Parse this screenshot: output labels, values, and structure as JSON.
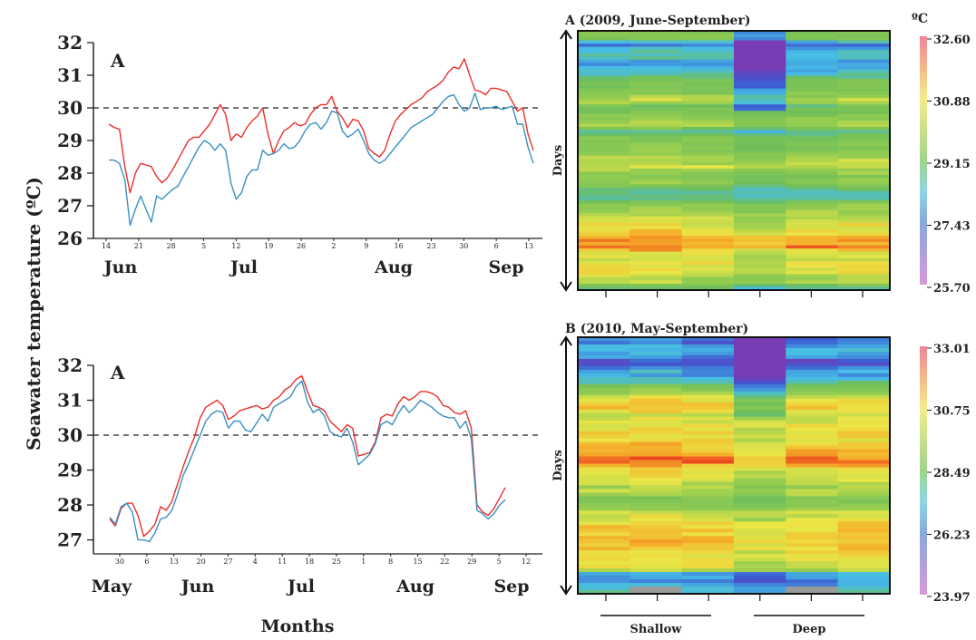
{
  "shared": {
    "y_axis_label": "Seawater temperature (ºC)",
    "x_axis_label": "Months",
    "threshold": 30,
    "colors": {
      "series_a": "#e8302a",
      "series_b": "#3a8fc2",
      "threshold_line": "#222222",
      "box_border": "#111111"
    }
  },
  "chart_data": [
    {
      "id": "line_2009",
      "type": "line",
      "panel_label": "A",
      "ylim": [
        26,
        32
      ],
      "yticks": [
        26,
        27,
        28,
        29,
        30,
        31,
        32
      ],
      "x_day_ticks": [
        "14",
        "21",
        "28",
        "5",
        "12",
        "19",
        "26",
        "2",
        "9",
        "16",
        "23",
        "30",
        "6",
        "13"
      ],
      "months": [
        "Jun",
        "Jul",
        "Aug",
        "Sep"
      ],
      "reference_line": 30,
      "series": [
        {
          "color": "#e8302a",
          "values": [
            29.5,
            29.4,
            29.35,
            28.2,
            27.4,
            28.0,
            28.3,
            28.25,
            28.2,
            27.9,
            27.7,
            27.85,
            28.1,
            28.4,
            28.7,
            29.0,
            29.1,
            29.1,
            29.3,
            29.5,
            29.8,
            30.1,
            29.8,
            29.0,
            29.2,
            29.1,
            29.4,
            29.6,
            29.75,
            30.0,
            29.2,
            28.6,
            29.0,
            29.3,
            29.4,
            29.55,
            29.45,
            29.5,
            29.8,
            30.0,
            30.1,
            30.1,
            30.35,
            29.9,
            29.7,
            29.4,
            29.65,
            29.6,
            29.3,
            28.75,
            28.6,
            28.5,
            28.7,
            29.2,
            29.6,
            29.8,
            29.95,
            30.1,
            30.2,
            30.3,
            30.5,
            30.6,
            30.7,
            30.85,
            31.1,
            31.25,
            31.2,
            31.5,
            31.0,
            30.55,
            30.5,
            30.4,
            30.6,
            30.6,
            30.55,
            30.5,
            30.2,
            29.9,
            30.0,
            29.2,
            28.7
          ]
        },
        {
          "color": "#3a8fc2",
          "values": [
            28.4,
            28.4,
            28.3,
            27.8,
            26.4,
            26.9,
            27.3,
            26.9,
            26.5,
            27.3,
            27.2,
            27.35,
            27.5,
            27.6,
            27.9,
            28.2,
            28.5,
            28.8,
            29.0,
            28.9,
            28.7,
            28.9,
            28.7,
            27.7,
            27.2,
            27.4,
            27.9,
            28.1,
            28.1,
            28.7,
            28.55,
            28.6,
            28.7,
            28.9,
            28.75,
            28.8,
            29.0,
            29.3,
            29.5,
            29.55,
            29.35,
            29.55,
            29.9,
            29.85,
            29.3,
            29.1,
            29.2,
            29.35,
            29.0,
            28.6,
            28.4,
            28.3,
            28.4,
            28.6,
            28.8,
            29.0,
            29.2,
            29.4,
            29.5,
            29.6,
            29.7,
            29.8,
            30.0,
            30.2,
            30.35,
            30.4,
            30.1,
            29.9,
            30.0,
            30.45,
            29.95,
            30.0,
            30.0,
            30.05,
            29.95,
            30.0,
            30.05,
            29.5,
            29.5,
            28.8,
            28.3
          ]
        }
      ]
    },
    {
      "id": "line_2010",
      "type": "line",
      "panel_label": "A",
      "ylim": [
        26.6,
        32
      ],
      "yticks": [
        27,
        28,
        29,
        30,
        31,
        32
      ],
      "x_day_ticks": [
        "30",
        "6",
        "13",
        "20",
        "27",
        "4",
        "11",
        "18",
        "25",
        "1",
        "8",
        "15",
        "22",
        "29",
        "5",
        "12"
      ],
      "months": [
        "May",
        "Jun",
        "Jul",
        "Aug",
        "Sep"
      ],
      "reference_line": 30,
      "series": [
        {
          "color": "#e8302a",
          "values": [
            27.6,
            27.4,
            27.9,
            28.05,
            28.05,
            27.7,
            27.1,
            27.25,
            27.45,
            27.95,
            27.85,
            28.1,
            28.6,
            29.1,
            29.55,
            29.95,
            30.5,
            30.8,
            30.9,
            31.0,
            30.85,
            30.45,
            30.55,
            30.7,
            30.75,
            30.8,
            30.85,
            30.75,
            30.8,
            31.0,
            31.1,
            31.3,
            31.4,
            31.6,
            31.7,
            31.25,
            30.85,
            30.8,
            30.7,
            30.4,
            30.25,
            30.1,
            30.3,
            30.2,
            29.4,
            29.45,
            29.5,
            29.8,
            30.5,
            30.6,
            30.55,
            30.9,
            31.1,
            31.0,
            31.1,
            31.25,
            31.25,
            31.2,
            31.1,
            30.85,
            30.8,
            30.65,
            30.6,
            30.7,
            30.2,
            28.0,
            27.8,
            27.7,
            27.9,
            28.2,
            28.5
          ]
        },
        {
          "color": "#3a8fc2",
          "values": [
            27.65,
            27.45,
            27.95,
            28.05,
            27.8,
            27.0,
            27.0,
            26.95,
            27.2,
            27.6,
            27.65,
            27.85,
            28.3,
            28.85,
            29.2,
            29.6,
            30.0,
            30.4,
            30.6,
            30.7,
            30.65,
            30.2,
            30.4,
            30.4,
            30.15,
            30.1,
            30.35,
            30.6,
            30.4,
            30.8,
            30.9,
            31.0,
            31.1,
            31.4,
            31.55,
            30.95,
            30.65,
            30.75,
            30.55,
            30.1,
            30.0,
            29.95,
            30.2,
            29.8,
            29.15,
            29.3,
            29.45,
            29.75,
            30.3,
            30.4,
            30.3,
            30.6,
            30.85,
            30.65,
            30.8,
            31.0,
            30.9,
            30.8,
            30.65,
            30.55,
            30.5,
            30.5,
            30.2,
            30.4,
            29.9,
            27.85,
            27.75,
            27.6,
            27.75,
            28.0,
            28.15
          ]
        }
      ]
    },
    {
      "id": "heatmap_2009",
      "type": "heatmap",
      "title": "A (2009, June-September)",
      "colorbar_unit": "ºC",
      "colorbar_ticks": [
        "32.60",
        "30.88",
        "29.15",
        "27.43",
        "25.70"
      ],
      "vmin": 25.7,
      "vmax": 32.6,
      "y_axis_label": "Days",
      "columns": 6,
      "group_labels": []
    },
    {
      "id": "heatmap_2010",
      "type": "heatmap",
      "title": "B (2010, May-September)",
      "colorbar_ticks": [
        "33.01",
        "30.75",
        "28.49",
        "26.23",
        "23.97"
      ],
      "vmin": 23.97,
      "vmax": 33.01,
      "y_axis_label": "Days",
      "columns": 6,
      "group_labels": [
        "Shallow",
        "Deep"
      ]
    }
  ]
}
